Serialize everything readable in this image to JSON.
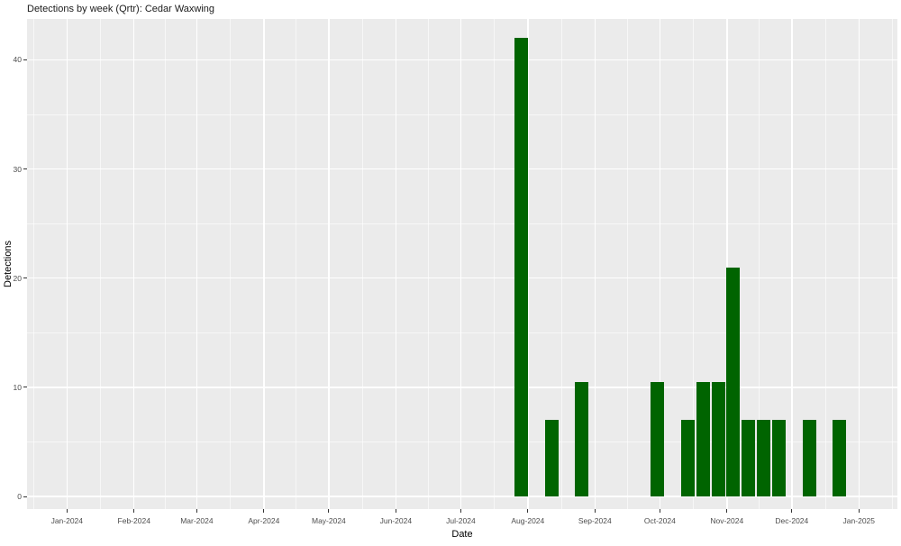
{
  "chart_data": {
    "type": "bar",
    "title": "Detections by week (Qrtr): Cedar Waxwing",
    "xlabel": "Date",
    "ylabel": "Detections",
    "x_ticks": [
      {
        "label": "Jan-2024",
        "date": "2024-01-01"
      },
      {
        "label": "Feb-2024",
        "date": "2024-02-01"
      },
      {
        "label": "Mar-2024",
        "date": "2024-03-01"
      },
      {
        "label": "Apr-2024",
        "date": "2024-04-01"
      },
      {
        "label": "May-2024",
        "date": "2024-05-01"
      },
      {
        "label": "Jun-2024",
        "date": "2024-06-01"
      },
      {
        "label": "Jul-2024",
        "date": "2024-07-01"
      },
      {
        "label": "Aug-2024",
        "date": "2024-08-01"
      },
      {
        "label": "Sep-2024",
        "date": "2024-09-01"
      },
      {
        "label": "Oct-2024",
        "date": "2024-10-01"
      },
      {
        "label": "Nov-2024",
        "date": "2024-11-01"
      },
      {
        "label": "Dec-2024",
        "date": "2024-12-01"
      },
      {
        "label": "Jan-2025",
        "date": "2025-01-01"
      }
    ],
    "y_ticks": [
      0,
      10,
      20,
      30,
      40
    ],
    "y_minor_ticks": [
      5,
      15,
      25,
      35
    ],
    "ylim": [
      -1.2,
      43.9
    ],
    "xlim_dates": [
      "2023-12-13",
      "2025-01-18"
    ],
    "grid": "on",
    "legend": "none",
    "bars": [
      {
        "week_start": "2024-07-29",
        "detections": 42
      },
      {
        "week_start": "2024-08-12",
        "detections": 7
      },
      {
        "week_start": "2024-08-26",
        "detections": 10.5
      },
      {
        "week_start": "2024-09-30",
        "detections": 10.5
      },
      {
        "week_start": "2024-10-14",
        "detections": 7
      },
      {
        "week_start": "2024-10-21",
        "detections": 10.5
      },
      {
        "week_start": "2024-10-28",
        "detections": 10.5
      },
      {
        "week_start": "2024-11-04",
        "detections": 21
      },
      {
        "week_start": "2024-11-11",
        "detections": 7
      },
      {
        "week_start": "2024-11-18",
        "detections": 7
      },
      {
        "week_start": "2024-11-25",
        "detections": 7
      },
      {
        "week_start": "2024-12-09",
        "detections": 7
      },
      {
        "week_start": "2024-12-23",
        "detections": 7
      }
    ],
    "colors": {
      "bar": "#006400",
      "panel_background": "#EBEBEB",
      "gridline": "#FFFFFF",
      "tick_label": "#4d4d4d",
      "tick_mark": "#333333",
      "title_text": "#1a1a1a"
    }
  }
}
